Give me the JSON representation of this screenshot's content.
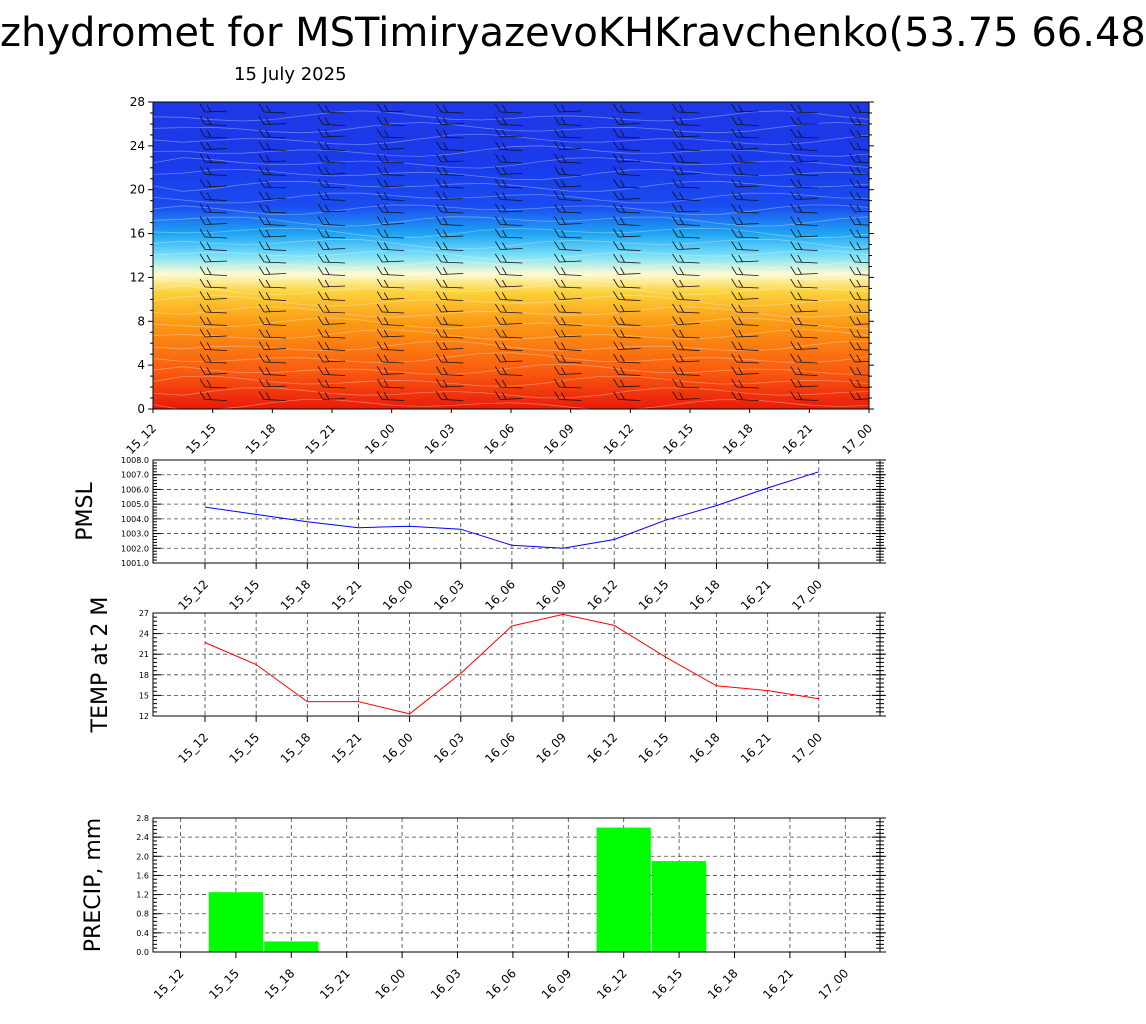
{
  "header": {
    "title": "zhydromet for MSTimiryazevoKHKravchenko(53.75 66.48",
    "subtitle": "15 July 2025"
  },
  "chart_data": [
    {
      "type": "heatmap",
      "title": "",
      "xlabel": "",
      "ylabel": "",
      "categories": [
        "15_12",
        "15_15",
        "15_18",
        "15_21",
        "16_00",
        "16_03",
        "16_06",
        "16_09",
        "16_12",
        "16_15",
        "16_18",
        "16_21",
        "17_00"
      ],
      "yticks": [
        0,
        4,
        8,
        12,
        16,
        20,
        24,
        28
      ],
      "ylim": [
        0,
        28
      ],
      "colorscale": [
        "#e81a0a",
        "#fa6a0f",
        "#fbb21b",
        "#fdfbd3",
        "#34d4f0",
        "#1a3cf0",
        "#1a2ee0"
      ],
      "wind_barbs": true,
      "grid": false
    },
    {
      "type": "line",
      "ylabel": "PMSL",
      "categories": [
        "15_12",
        "15_15",
        "15_18",
        "15_21",
        "16_00",
        "16_03",
        "16_06",
        "16_09",
        "16_12",
        "16_15",
        "16_18",
        "16_21",
        "17_00"
      ],
      "series": [
        {
          "values": [
            1004.8,
            1004.3,
            1003.8,
            1003.4,
            1003.5,
            1003.3,
            1002.2,
            1002.0,
            1002.6,
            1003.9,
            1004.9,
            1006.1,
            1007.2
          ],
          "color": "#0000ff"
        }
      ],
      "yticks": [
        "1001.0",
        "1002.0",
        "1003.0",
        "1004.0",
        "1005.0",
        "1006.0",
        "1007.0",
        "1008.0"
      ],
      "ylim": [
        1001,
        1008
      ],
      "grid": true
    },
    {
      "type": "line",
      "ylabel": "TEMP at 2 M",
      "categories": [
        "15_12",
        "15_15",
        "15_18",
        "15_21",
        "16_00",
        "16_03",
        "16_06",
        "16_09",
        "16_12",
        "16_15",
        "16_18",
        "16_21",
        "17_00"
      ],
      "series": [
        {
          "values": [
            22.7,
            19.5,
            14.1,
            14.1,
            12.3,
            18.2,
            25.1,
            26.8,
            25.2,
            20.6,
            16.4,
            15.7,
            14.5
          ],
          "color": "#ff0000"
        }
      ],
      "yticks": [
        "12",
        "15",
        "18",
        "21",
        "24",
        "27"
      ],
      "ylim": [
        12,
        27
      ],
      "grid": true
    },
    {
      "type": "bar",
      "ylabel": "PRECIP, mm",
      "categories": [
        "15_12",
        "15_15",
        "15_18",
        "15_21",
        "16_00",
        "16_03",
        "16_06",
        "16_09",
        "16_12",
        "16_15",
        "16_18",
        "16_21",
        "17_00"
      ],
      "values": [
        0,
        1.25,
        0.22,
        0,
        0,
        0,
        0,
        0,
        2.6,
        1.9,
        0,
        0,
        0
      ],
      "color": "#00ff00",
      "yticks": [
        "0.0",
        "0.4",
        "0.8",
        "1.2",
        "1.6",
        "2.0",
        "2.4",
        "2.8"
      ],
      "ylim": [
        0,
        2.8
      ],
      "grid": true
    }
  ]
}
